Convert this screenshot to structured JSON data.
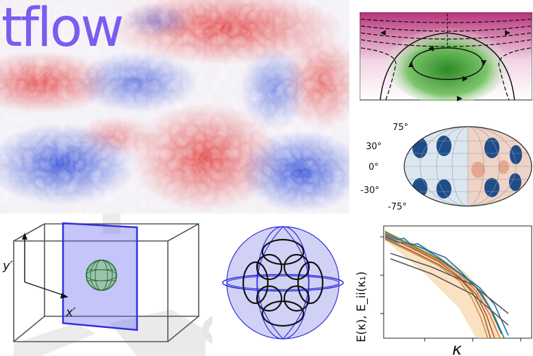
{
  "logo": {
    "text": "tflow"
  },
  "mollweide": {
    "lat_labels": [
      "75°",
      "30°",
      "0°",
      "-30°",
      "-75°"
    ]
  },
  "box3d": {
    "ylabel": "y′",
    "xlabel": "x′"
  },
  "spectrum": {
    "ylabel": "E(κ), E_ii(κ₁)",
    "xlabel": "κ"
  },
  "colors": {
    "logo": "#7a5cf0",
    "slice": "#3b3bdc",
    "red": "#e03a3a",
    "blue": "#2f4fd0"
  }
}
